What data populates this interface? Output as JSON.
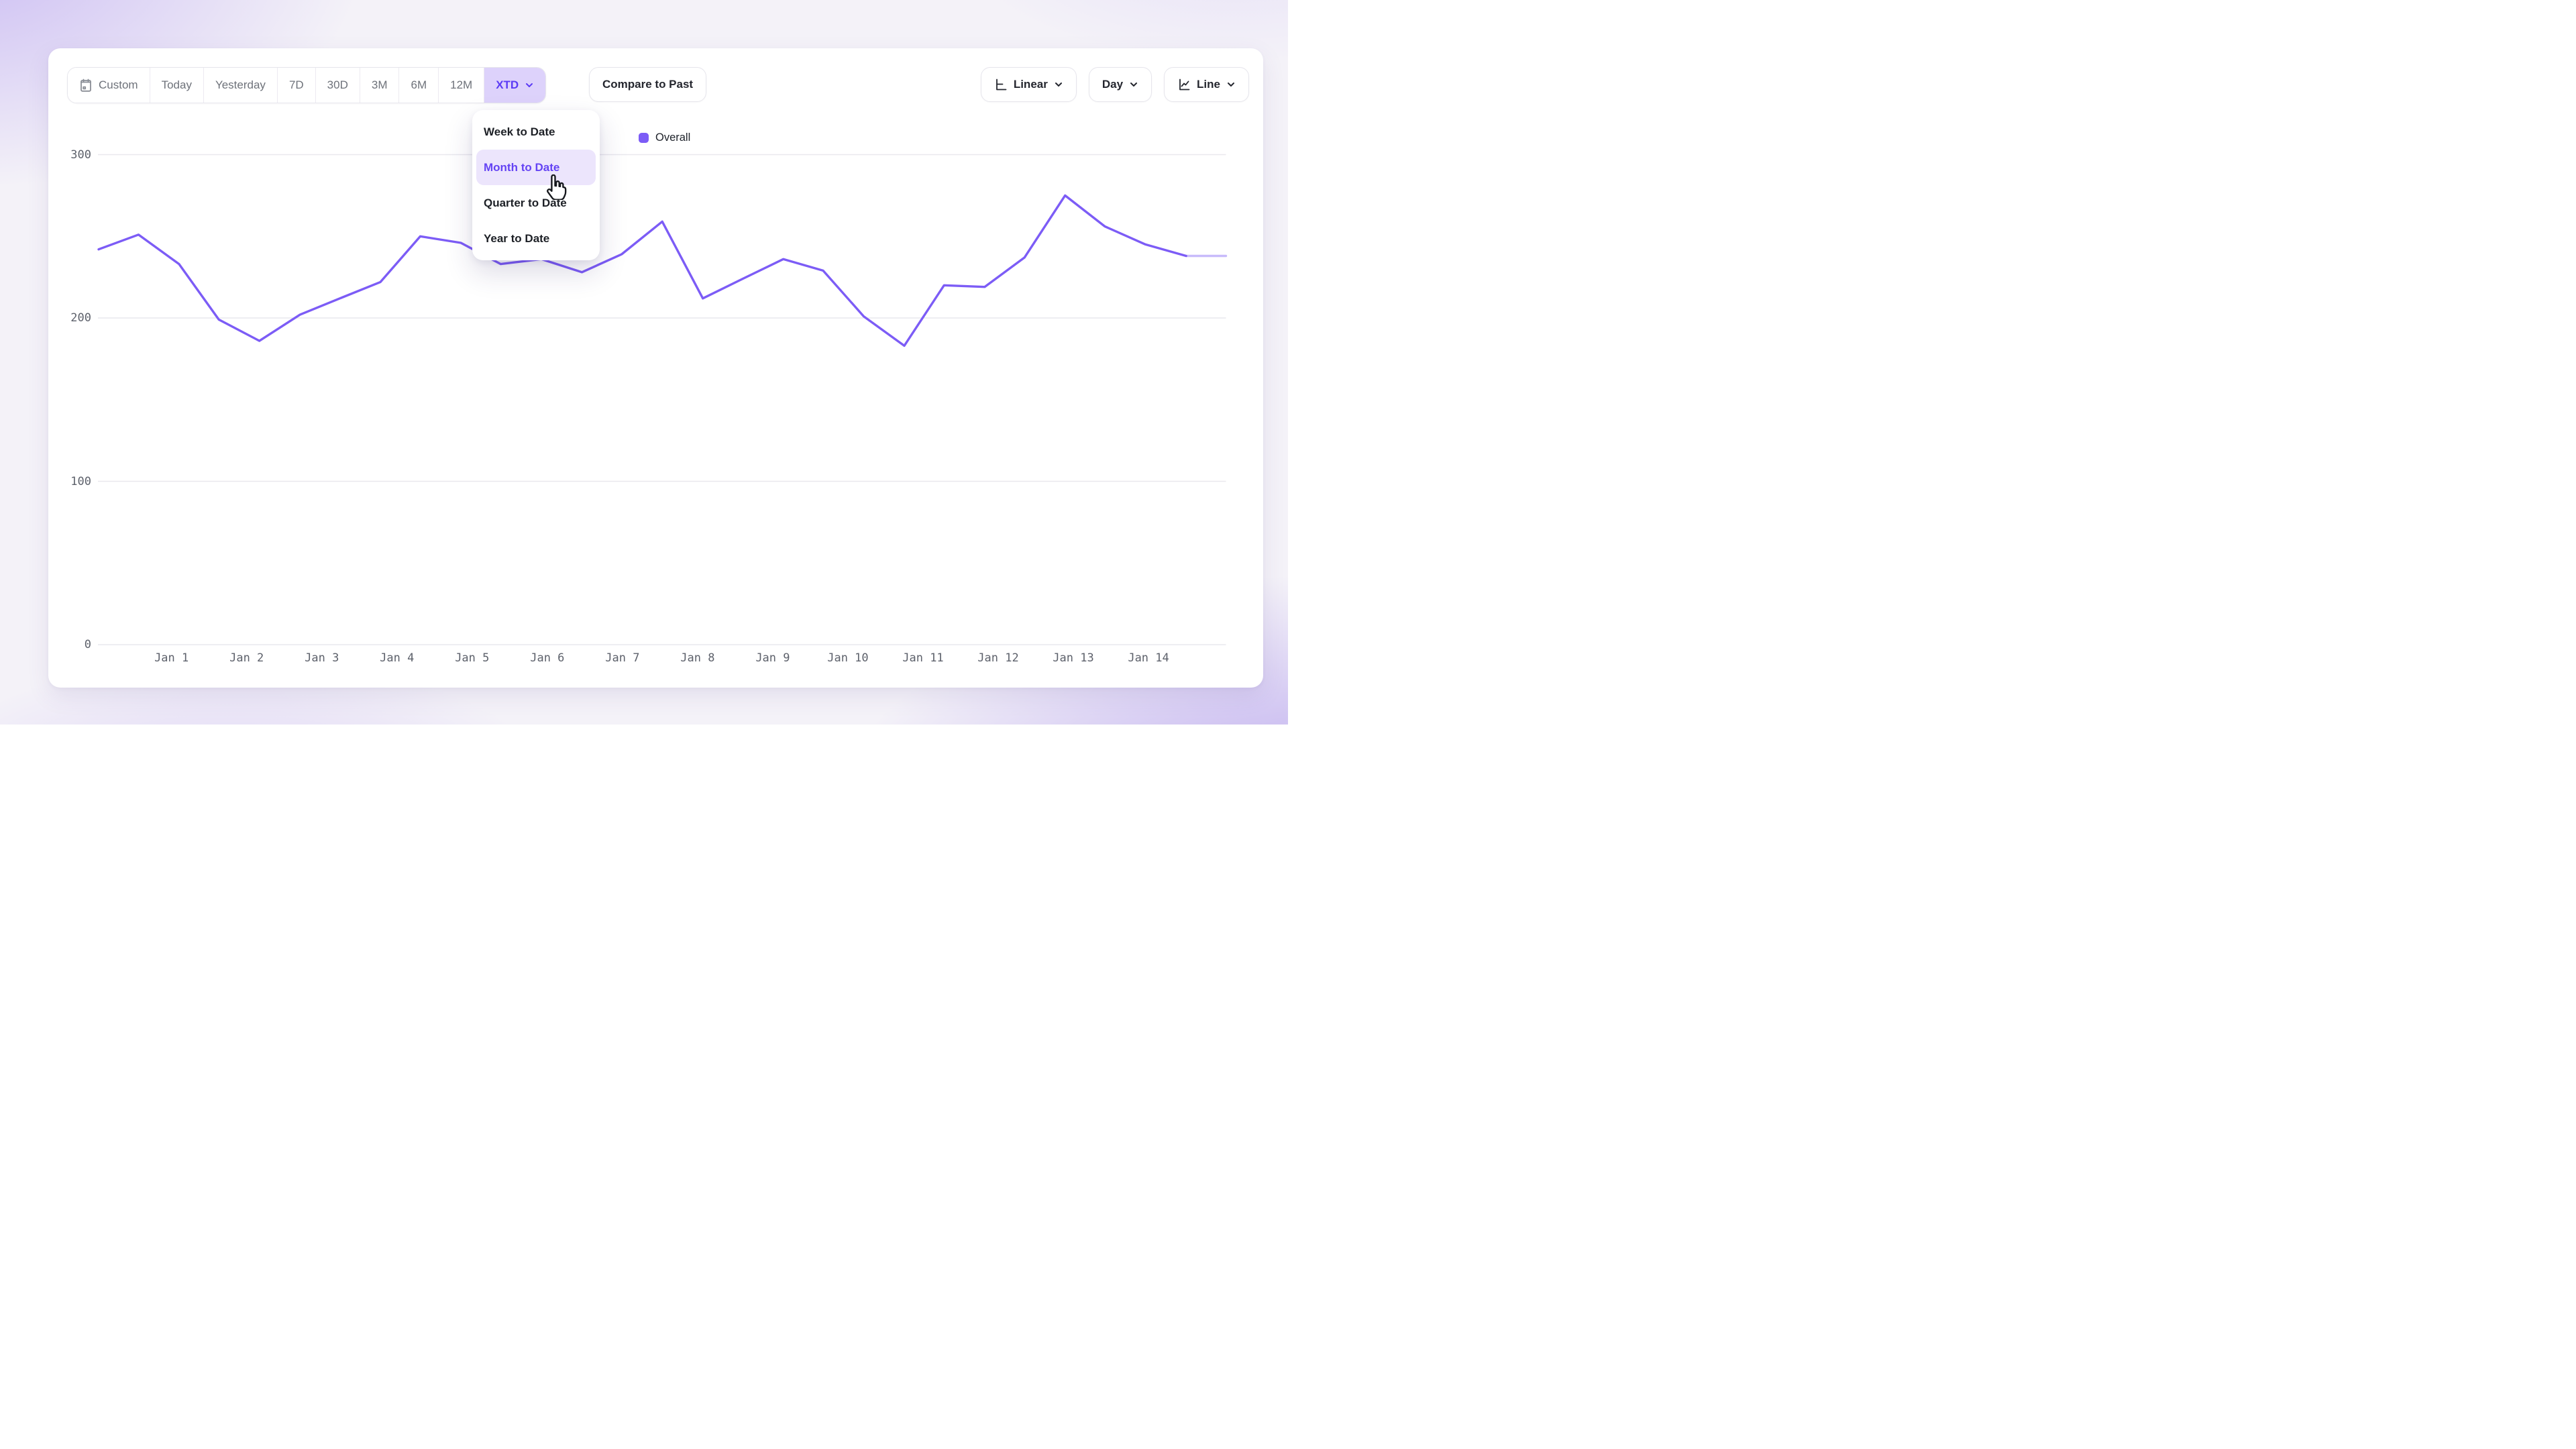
{
  "toolbar": {
    "range_buttons": [
      {
        "label": "Custom",
        "icon": "calendar",
        "active": false,
        "chevron": false
      },
      {
        "label": "Today",
        "active": false,
        "chevron": false
      },
      {
        "label": "Yesterday",
        "active": false,
        "chevron": false
      },
      {
        "label": "7D",
        "active": false,
        "chevron": false
      },
      {
        "label": "30D",
        "active": false,
        "chevron": false
      },
      {
        "label": "3M",
        "active": false,
        "chevron": false
      },
      {
        "label": "6M",
        "active": false,
        "chevron": false
      },
      {
        "label": "12M",
        "active": false,
        "chevron": false
      },
      {
        "label": "XTD",
        "active": true,
        "chevron": true
      }
    ],
    "compare_label": "Compare to Past",
    "view_buttons": [
      {
        "label": "Linear",
        "icon": "linear-scale",
        "chevron": true
      },
      {
        "label": "Day",
        "icon": null,
        "chevron": true
      },
      {
        "label": "Line",
        "icon": "line-chart",
        "chevron": true
      }
    ]
  },
  "dropdown": {
    "items": [
      {
        "label": "Week to Date",
        "hovered": false
      },
      {
        "label": "Month to Date",
        "hovered": true
      },
      {
        "label": "Quarter to Date",
        "hovered": false
      },
      {
        "label": "Year to Date",
        "hovered": false
      }
    ]
  },
  "legend": {
    "label": "Overall"
  },
  "chart_data": {
    "type": "line",
    "title": "",
    "xlabel": "",
    "ylabel": "",
    "legend_position": "top-center",
    "grid": true,
    "ylim": [
      0,
      300
    ],
    "y_ticks": [
      "0",
      "100",
      "200",
      "300"
    ],
    "x_tick_labels": [
      "Jan 1",
      "Jan 2",
      "Jan 3",
      "Jan 4",
      "Jan 5",
      "Jan 6",
      "Jan 7",
      "Jan 8",
      "Jan 9",
      "Jan 10",
      "Jan 11",
      "Jan 12",
      "Jan 13",
      "Jan 14"
    ],
    "x_tick_days": [
      1,
      2,
      3,
      4,
      5,
      6,
      7,
      8,
      9,
      10,
      11,
      12,
      13,
      14
    ],
    "series": [
      {
        "name": "Overall",
        "color": "#7c5cf6",
        "last_segment_partial": true,
        "points": [
          [
            0.03,
            242
          ],
          [
            0.56,
            251
          ],
          [
            1.1,
            233
          ],
          [
            1.63,
            199
          ],
          [
            2.17,
            186
          ],
          [
            2.71,
            202
          ],
          [
            3.24,
            212
          ],
          [
            3.78,
            222
          ],
          [
            4.31,
            250
          ],
          [
            4.85,
            246
          ],
          [
            5.38,
            233
          ],
          [
            5.92,
            236
          ],
          [
            6.46,
            228
          ],
          [
            6.99,
            239
          ],
          [
            7.53,
            259
          ],
          [
            8.07,
            212
          ],
          [
            8.6,
            224
          ],
          [
            9.14,
            236
          ],
          [
            9.67,
            229
          ],
          [
            10.21,
            201
          ],
          [
            10.75,
            183
          ],
          [
            11.28,
            220
          ],
          [
            11.82,
            219
          ],
          [
            12.35,
            237
          ],
          [
            12.89,
            275
          ],
          [
            13.42,
            256
          ],
          [
            13.96,
            245
          ],
          [
            14.5,
            238
          ],
          [
            15.03,
            238
          ]
        ]
      }
    ]
  },
  "colors": {
    "accent": "#5b3bf5",
    "line": "#7c5cf6",
    "active_segment_bg": "#ddd2fb",
    "menu_hover_bg": "#ece5fc",
    "menu_hover_text": "#6443f4",
    "grid": "#e9e8ee",
    "axis_text": "#5d616b",
    "text": "#24262e",
    "muted_text": "#6e727a",
    "border": "#e6e5ec"
  }
}
